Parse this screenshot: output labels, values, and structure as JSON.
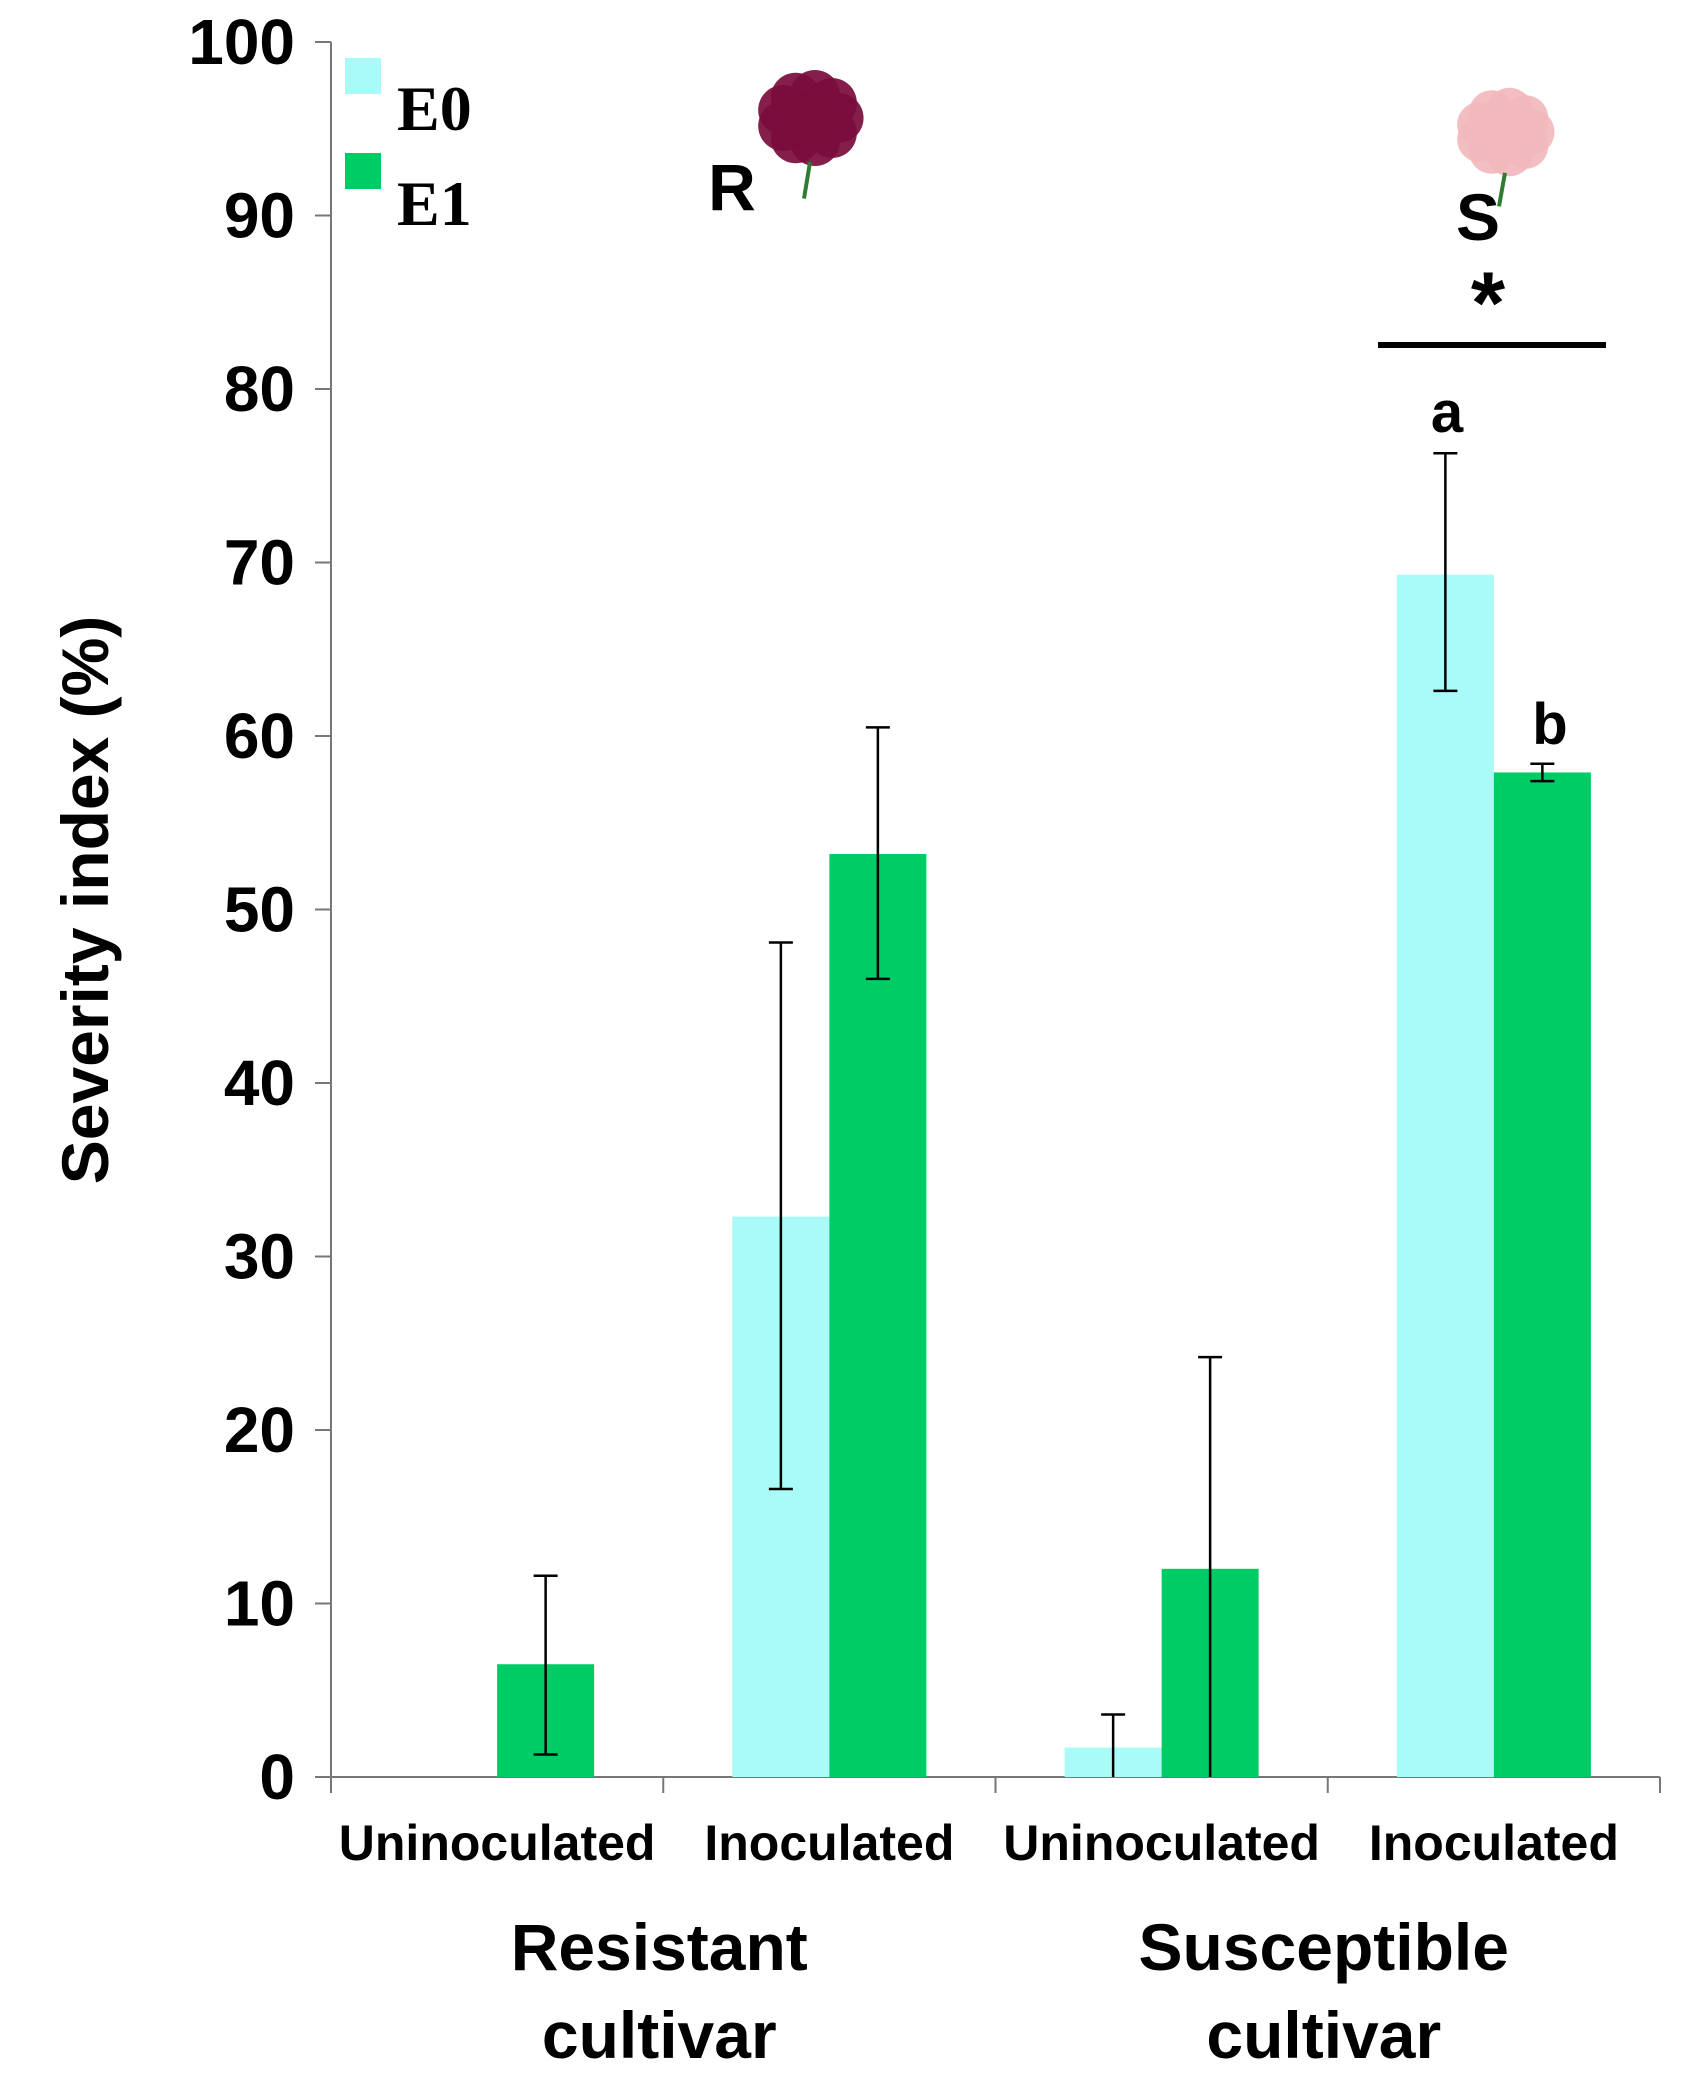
{
  "chart_data": {
    "type": "bar",
    "title": "",
    "xlabel": "",
    "ylabel": "Severity index (%)",
    "ylim": [
      0,
      100
    ],
    "yticks": [
      0,
      10,
      20,
      30,
      40,
      50,
      60,
      70,
      80,
      90,
      100
    ],
    "grid": false,
    "legend_position": "top-left",
    "categories": [
      "Uninoculated",
      "Inoculated",
      "Uninoculated",
      "Inoculated"
    ],
    "groups": [
      {
        "label_line1": "Resistant",
        "label_line2": "cultivar",
        "marker": "R",
        "flower_color": "#7a0c3c"
      },
      {
        "label_line1": "Susceptible",
        "label_line2": "cultivar",
        "marker": "S",
        "flower_color": "#f2b8bd"
      }
    ],
    "series": [
      {
        "name": "E0",
        "color": "#a8fbf6",
        "values": [
          0,
          32.3,
          1.7,
          69.3
        ],
        "err_low": [
          0,
          16.6,
          0,
          62.6
        ],
        "err_high": [
          0,
          48.1,
          3.6,
          76.3
        ]
      },
      {
        "name": "E1",
        "color": "#00cc66",
        "values": [
          6.5,
          53.2,
          12.0,
          57.9
        ],
        "err_low": [
          1.3,
          46.0,
          0,
          57.4
        ],
        "err_high": [
          11.6,
          60.5,
          24.2,
          58.4
        ]
      }
    ],
    "annotations": {
      "significance": "*",
      "letter_a": "a",
      "letter_b": "b"
    }
  }
}
